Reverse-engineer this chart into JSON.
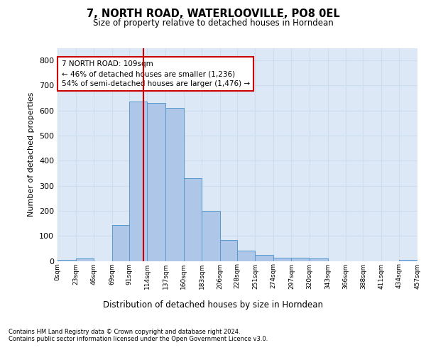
{
  "title_line1": "7, NORTH ROAD, WATERLOOVILLE, PO8 0EL",
  "title_line2": "Size of property relative to detached houses in Horndean",
  "xlabel": "Distribution of detached houses by size in Horndean",
  "ylabel": "Number of detached properties",
  "bar_color": "#aec6e8",
  "bar_edge_color": "#5599cc",
  "grid_color": "#ccddee",
  "annotation_box_color": "#cc0000",
  "vline_color": "#cc0000",
  "property_size": 109,
  "annotation_text": "7 NORTH ROAD: 109sqm\n← 46% of detached houses are smaller (1,236)\n54% of semi-detached houses are larger (1,476) →",
  "footnote1": "Contains HM Land Registry data © Crown copyright and database right 2024.",
  "footnote2": "Contains public sector information licensed under the Open Government Licence v3.0.",
  "bin_edges": [
    0,
    23,
    46,
    69,
    91,
    114,
    137,
    160,
    183,
    206,
    228,
    251,
    274,
    297,
    320,
    343,
    366,
    388,
    411,
    434,
    457
  ],
  "bar_heights": [
    5,
    10,
    0,
    142,
    635,
    630,
    610,
    330,
    200,
    83,
    40,
    25,
    12,
    12,
    10,
    0,
    0,
    0,
    0,
    5
  ],
  "ylim": [
    0,
    850
  ],
  "yticks": [
    0,
    100,
    200,
    300,
    400,
    500,
    600,
    700,
    800
  ],
  "tick_labels": [
    "0sqm",
    "23sqm",
    "46sqm",
    "69sqm",
    "91sqm",
    "114sqm",
    "137sqm",
    "160sqm",
    "183sqm",
    "206sqm",
    "228sqm",
    "251sqm",
    "274sqm",
    "297sqm",
    "320sqm",
    "343sqm",
    "366sqm",
    "388sqm",
    "411sqm",
    "434sqm",
    "457sqm"
  ],
  "background_color": "#dce8f5",
  "fig_background": "#ffffff"
}
